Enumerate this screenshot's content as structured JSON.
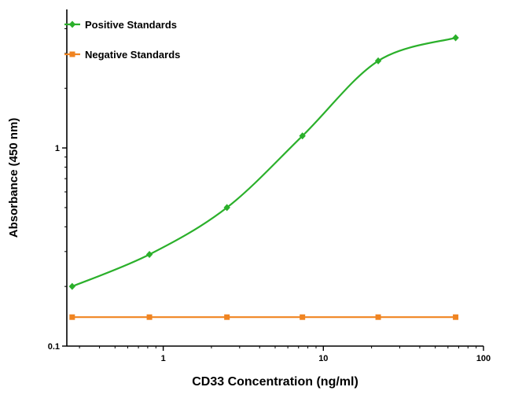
{
  "chart_data": {
    "type": "line",
    "title": "",
    "xlabel": "CD33 Concentration (ng/ml)",
    "ylabel": "Absorbance (450 nm)",
    "x_scale": "log",
    "y_scale": "log",
    "xlim": [
      0.25,
      100
    ],
    "ylim": [
      0.1,
      5
    ],
    "x_ticks": [
      1,
      10,
      100
    ],
    "x_tick_labels": [
      "1",
      "10",
      "100"
    ],
    "y_ticks": [
      0.1,
      1
    ],
    "y_tick_labels": [
      "0.1",
      "1"
    ],
    "grid": false,
    "legend_position": "top-left",
    "series": [
      {
        "name": "Positive Standards",
        "color": "#2bb02b",
        "marker": "diamond",
        "smooth": true,
        "x": [
          0.27,
          0.82,
          2.5,
          7.4,
          22,
          67
        ],
        "y": [
          0.2,
          0.29,
          0.5,
          1.15,
          2.75,
          3.6
        ]
      },
      {
        "name": "Negative Standards",
        "color": "#f08421",
        "marker": "square",
        "smooth": false,
        "x": [
          0.27,
          0.82,
          2.5,
          7.4,
          22,
          67
        ],
        "y": [
          0.14,
          0.14,
          0.14,
          0.14,
          0.14,
          0.14
        ]
      }
    ]
  }
}
